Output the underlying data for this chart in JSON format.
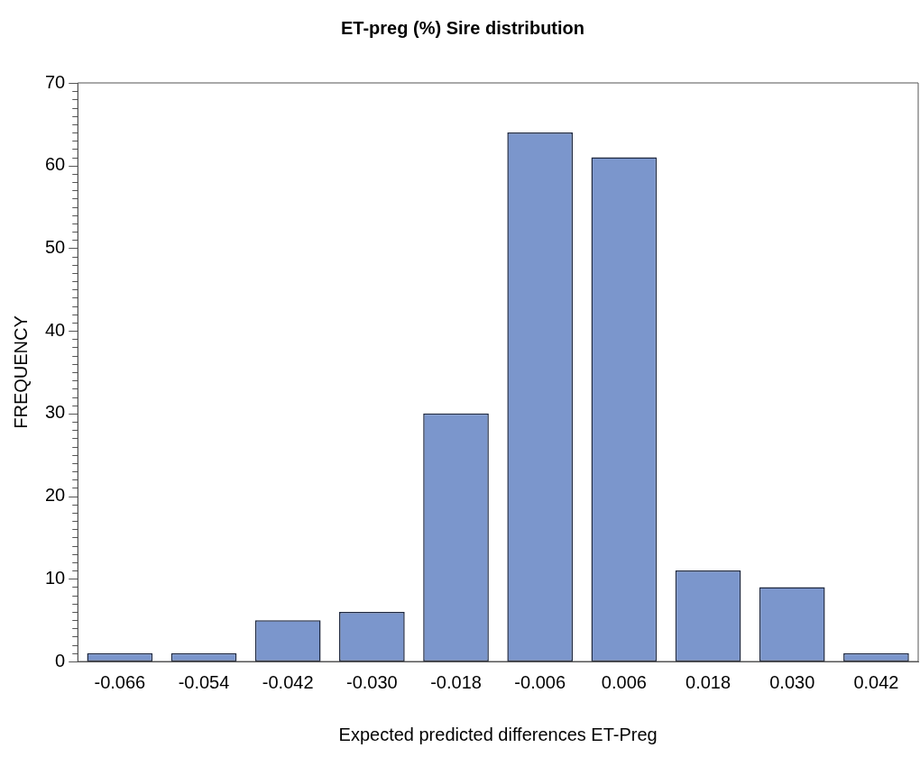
{
  "chart_data": {
    "type": "bar",
    "title": "ET-preg (%) Sire distribution",
    "xlabel": "Expected predicted differences ET-Preg",
    "ylabel": "FREQUENCY",
    "categories": [
      "-0.066",
      "-0.054",
      "-0.042",
      "-0.030",
      "-0.018",
      "-0.006",
      "0.006",
      "0.018",
      "0.030",
      "0.042"
    ],
    "values": [
      1,
      1,
      5,
      6,
      30,
      64,
      61,
      11,
      9,
      1
    ],
    "color": "#7b96cc",
    "ylim": [
      0,
      70
    ],
    "yticks": [
      0,
      {
        "value": 1,
        "label": null
      },
      {
        "value": 2,
        "label": null
      },
      {
        "value": 3,
        "label": null
      },
      {
        "value": 4,
        "label": null
      },
      {
        "value": 5,
        "label": null
      },
      {
        "value": 6,
        "label": null
      },
      {
        "value": 7,
        "label": null
      },
      {
        "value": 8,
        "label": null
      },
      {
        "value": 9,
        "label": null
      },
      10,
      {
        "value": 11,
        "label": null
      },
      {
        "value": 12,
        "label": null
      },
      {
        "value": 13,
        "label": null
      },
      {
        "value": 14,
        "label": null
      },
      {
        "value": 15,
        "label": null
      },
      {
        "value": 16,
        "label": null
      },
      {
        "value": 17,
        "label": null
      },
      {
        "value": 18,
        "label": null
      },
      {
        "value": 19,
        "label": null
      },
      20,
      {
        "value": 21,
        "label": null
      },
      {
        "value": 22,
        "label": null
      },
      {
        "value": 23,
        "label": null
      },
      {
        "value": 24,
        "label": null
      },
      {
        "value": 25,
        "label": null
      },
      {
        "value": 26,
        "label": null
      },
      {
        "value": 27,
        "label": null
      },
      {
        "value": 28,
        "label": null
      },
      {
        "value": 29,
        "label": null
      },
      30,
      {
        "value": 31,
        "label": null
      },
      {
        "value": 32,
        "label": null
      },
      {
        "value": 33,
        "label": null
      },
      {
        "value": 34,
        "label": null
      },
      {
        "value": 35,
        "label": null
      },
      {
        "value": 36,
        "label": null
      },
      {
        "value": 37,
        "label": null
      },
      {
        "value": 38,
        "label": null
      },
      {
        "value": 39,
        "label": null
      },
      40,
      {
        "value": 41,
        "label": null
      },
      {
        "value": 42,
        "label": null
      },
      {
        "value": 43,
        "label": null
      },
      {
        "value": 44,
        "label": null
      },
      {
        "value": 45,
        "label": null
      },
      {
        "value": 46,
        "label": null
      },
      {
        "value": 47,
        "label": null
      },
      {
        "value": 48,
        "label": null
      },
      {
        "value": 49,
        "label": null
      },
      50,
      {
        "value": 51,
        "label": null
      },
      {
        "value": 52,
        "label": null
      },
      {
        "value": 53,
        "label": null
      },
      {
        "value": 54,
        "label": null
      },
      {
        "value": 55,
        "label": null
      },
      {
        "value": 56,
        "label": null
      },
      {
        "value": 57,
        "label": null
      },
      {
        "value": 58,
        "label": null
      },
      {
        "value": 59,
        "label": null
      },
      60,
      {
        "value": 61,
        "label": null
      },
      {
        "value": 62,
        "label": null
      },
      {
        "value": 63,
        "label": null
      },
      {
        "value": 64,
        "label": null
      },
      {
        "value": 65,
        "label": null
      },
      {
        "value": 66,
        "label": null
      },
      {
        "value": 67,
        "label": null
      },
      {
        "value": 68,
        "label": null
      },
      {
        "value": 69,
        "label": null
      },
      70
    ],
    "grid": false,
    "legend": false
  }
}
